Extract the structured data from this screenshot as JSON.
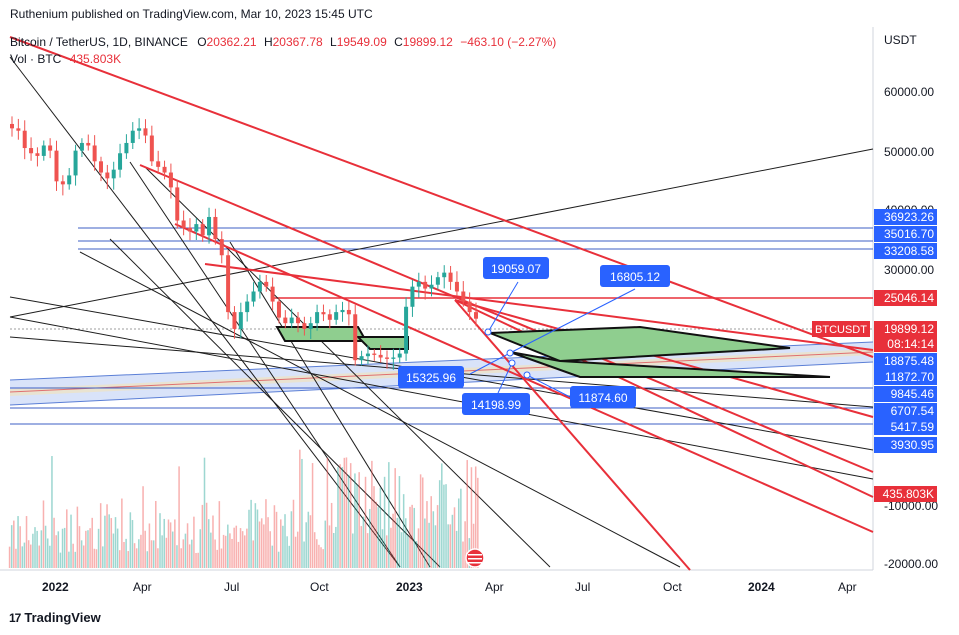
{
  "header": {
    "published": "Ruthenium published on TradingView.com, Mar 10, 2023 15:45 UTC"
  },
  "footer": {
    "brand": "TradingView",
    "logo_glyph": "17"
  },
  "legend": {
    "symbol": "Bitcoin / TetherUS, 1D, BINANCE",
    "o_label": "O",
    "o": "20362.21",
    "h_label": "H",
    "h": "20367.78",
    "l_label": "L",
    "l": "19549.09",
    "c_label": "C",
    "c": "19899.12",
    "change": "−463.10 (−2.27%)",
    "vol_label": "Vol · BTC",
    "vol": "435.803K"
  },
  "colors": {
    "up": "#26a69a",
    "down": "#ef5350",
    "red_line": "#e8303a",
    "blue_label": "#2962ff",
    "channel": "#b7c9f2"
  },
  "chart_data": {
    "type": "candlestick",
    "symbol": "BTCUSDT",
    "currency": "USDT",
    "price_axis_ticks": [
      "60000.00",
      "50000.00",
      "40000.00",
      "30000.00",
      "-10000.00",
      "-20000.00"
    ],
    "time_axis_ticks": [
      "2022",
      "Apr",
      "Jul",
      "Oct",
      "2023",
      "Apr",
      "Jul",
      "Oct",
      "2024",
      "Apr"
    ],
    "price_labels": [
      {
        "label": "36923.26",
        "kind": "blue"
      },
      {
        "label": "35016.70",
        "kind": "blue"
      },
      {
        "label": "33208.58",
        "kind": "blue"
      },
      {
        "label": "25046.14",
        "kind": "red"
      },
      {
        "label": "19899.12",
        "kind": "red"
      },
      {
        "label": "08:14:14",
        "kind": "red"
      },
      {
        "label": "18875.48",
        "kind": "blue"
      },
      {
        "label": "11872.70",
        "kind": "blue"
      },
      {
        "label": "9845.46",
        "kind": "blue"
      },
      {
        "label": "6707.54",
        "kind": "blue"
      },
      {
        "label": "5417.59",
        "kind": "blue"
      },
      {
        "label": "3930.95",
        "kind": "blue"
      },
      {
        "label": "435.803K",
        "kind": "red"
      }
    ],
    "symbol_tag": "BTCUSDT",
    "callouts": [
      {
        "label": "19059.07"
      },
      {
        "label": "16805.12"
      },
      {
        "label": "15325.96"
      },
      {
        "label": "14198.99"
      },
      {
        "label": "11874.60"
      }
    ],
    "candles_approx_close": [
      47000,
      46500,
      43000,
      42000,
      41500,
      43500,
      42500,
      37000,
      36500,
      38000,
      42500,
      44000,
      43500,
      40500,
      38500,
      37500,
      39000,
      42000,
      44000,
      46500,
      47000,
      45500,
      40500,
      39500,
      38500,
      36000,
      31000,
      30000,
      29500,
      30500,
      29000,
      31500,
      28500,
      26500,
      20500,
      19000,
      20500,
      21500,
      22500,
      23500,
      23000,
      21500,
      20000,
      19500,
      20000,
      19500,
      19000,
      19500,
      20500,
      20300,
      19800,
      20500,
      20700,
      20300,
      16500,
      16800,
      17000,
      16900,
      16700,
      16600,
      16700,
      17000,
      21000,
      23000,
      23500,
      22800,
      23200,
      24000,
      24500,
      23500,
      22500,
      21500,
      20500,
      19899
    ]
  }
}
